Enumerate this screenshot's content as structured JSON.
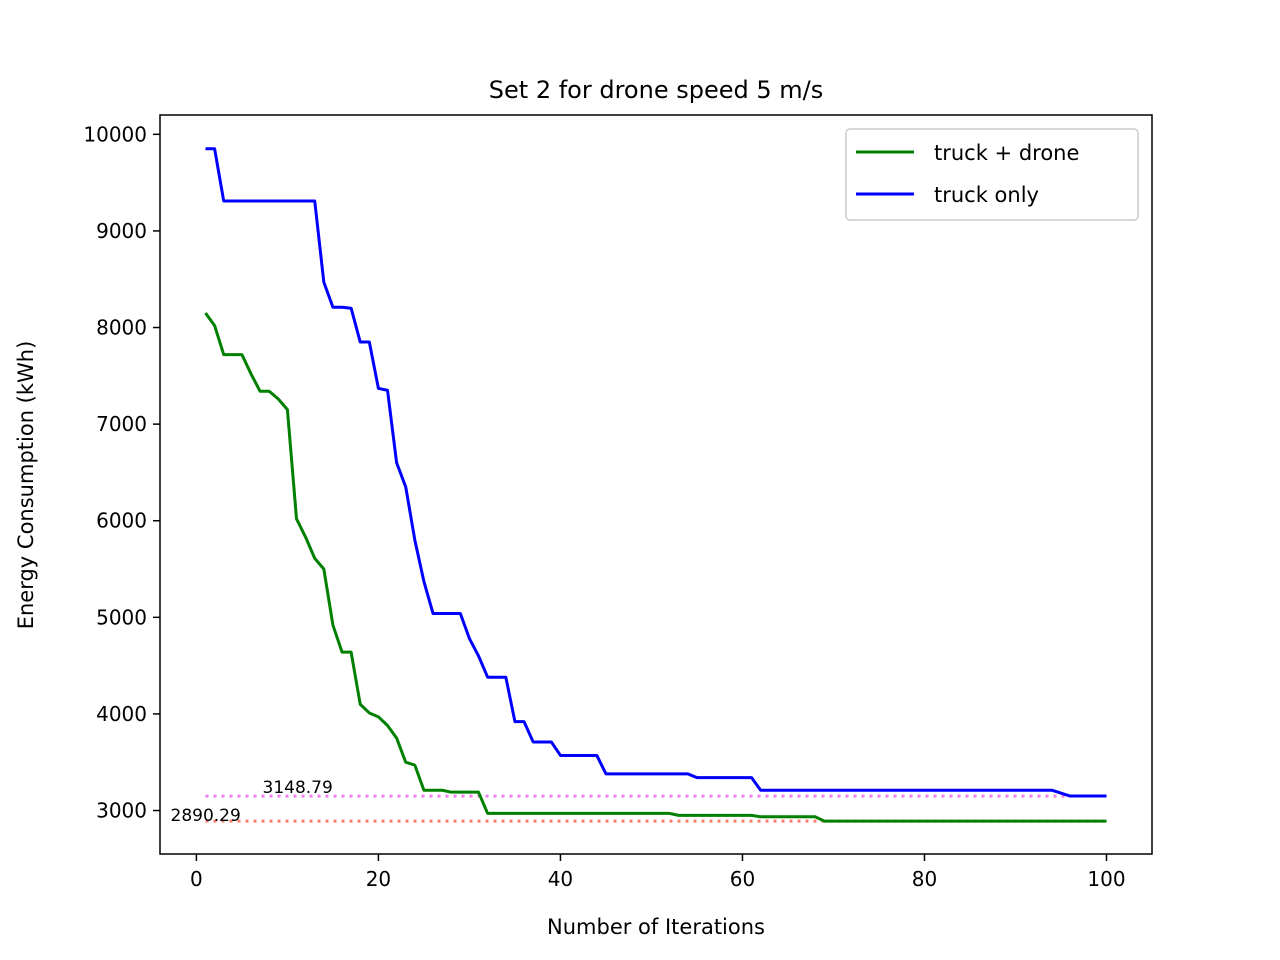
{
  "chart_data": {
    "type": "line",
    "title": "Set 2 for drone speed 5 m/s",
    "xlabel": "Number of Iterations",
    "ylabel": "Energy Consumption (kWh)",
    "xlim": [
      -4,
      105
    ],
    "ylim": [
      2550,
      10200
    ],
    "xticks": [
      0,
      20,
      40,
      60,
      80,
      100
    ],
    "yticks": [
      3000,
      4000,
      5000,
      6000,
      7000,
      8000,
      9000,
      10000
    ],
    "grid": false,
    "legend_position": "top-right",
    "series": [
      {
        "name": "truck + drone",
        "color": "#008000",
        "points": [
          [
            1,
            8150
          ],
          [
            2,
            8020
          ],
          [
            3,
            7720
          ],
          [
            4,
            7720
          ],
          [
            5,
            7720
          ],
          [
            6,
            7520
          ],
          [
            7,
            7340
          ],
          [
            8,
            7340
          ],
          [
            9,
            7260
          ],
          [
            10,
            7150
          ],
          [
            11,
            6020
          ],
          [
            12,
            5830
          ],
          [
            13,
            5610
          ],
          [
            14,
            5500
          ],
          [
            15,
            4920
          ],
          [
            16,
            4640
          ],
          [
            17,
            4640
          ],
          [
            18,
            4100
          ],
          [
            19,
            4010
          ],
          [
            20,
            3970
          ],
          [
            21,
            3880
          ],
          [
            22,
            3750
          ],
          [
            23,
            3500
          ],
          [
            24,
            3470
          ],
          [
            25,
            3210
          ],
          [
            26,
            3210
          ],
          [
            27,
            3210
          ],
          [
            28,
            3190
          ],
          [
            29,
            3190
          ],
          [
            30,
            3190
          ],
          [
            31,
            3190
          ],
          [
            32,
            2970
          ],
          [
            50,
            2970
          ],
          [
            52,
            2970
          ],
          [
            53,
            2950
          ],
          [
            61,
            2950
          ],
          [
            62,
            2935
          ],
          [
            68,
            2935
          ],
          [
            69,
            2890
          ],
          [
            100,
            2890
          ]
        ]
      },
      {
        "name": "truck only",
        "color": "#0000ff",
        "points": [
          [
            1,
            9850
          ],
          [
            2,
            9850
          ],
          [
            3,
            9310
          ],
          [
            13,
            9310
          ],
          [
            14,
            8470
          ],
          [
            15,
            8210
          ],
          [
            16,
            8210
          ],
          [
            17,
            8200
          ],
          [
            18,
            7850
          ],
          [
            19,
            7850
          ],
          [
            20,
            7370
          ],
          [
            21,
            7350
          ],
          [
            22,
            6600
          ],
          [
            23,
            6350
          ],
          [
            24,
            5800
          ],
          [
            25,
            5370
          ],
          [
            26,
            5040
          ],
          [
            29,
            5040
          ],
          [
            30,
            4780
          ],
          [
            31,
            4600
          ],
          [
            32,
            4380
          ],
          [
            34,
            4380
          ],
          [
            35,
            3920
          ],
          [
            36,
            3920
          ],
          [
            37,
            3710
          ],
          [
            39,
            3710
          ],
          [
            40,
            3570
          ],
          [
            44,
            3570
          ],
          [
            45,
            3380
          ],
          [
            54,
            3380
          ],
          [
            55,
            3340
          ],
          [
            61,
            3340
          ],
          [
            62,
            3210
          ],
          [
            94,
            3210
          ],
          [
            96,
            3150
          ],
          [
            100,
            3150
          ]
        ]
      }
    ],
    "reference_lines": [
      {
        "value": 3148.79,
        "label": "3148.79",
        "color": "#ee82ee",
        "x_start": 1,
        "x_end": 100
      },
      {
        "value": 2890.29,
        "label": "2890.29",
        "color": "#fa8072",
        "x_start": 1,
        "x_end": 100
      }
    ]
  }
}
